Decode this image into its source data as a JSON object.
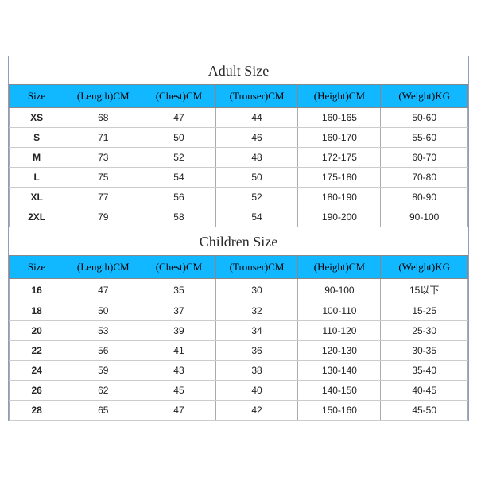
{
  "adult": {
    "title": "Adult Size",
    "columns": [
      "Size",
      "(Length)CM",
      "(Chest)CM",
      "(Trouser)CM",
      "(Height)CM",
      "(Weight)KG"
    ],
    "rows": [
      [
        "XS",
        "68",
        "47",
        "44",
        "160-165",
        "50-60"
      ],
      [
        "S",
        "71",
        "50",
        "46",
        "160-170",
        "55-60"
      ],
      [
        "M",
        "73",
        "52",
        "48",
        "172-175",
        "60-70"
      ],
      [
        "L",
        "75",
        "54",
        "50",
        "175-180",
        "70-80"
      ],
      [
        "XL",
        "77",
        "56",
        "52",
        "180-190",
        "80-90"
      ],
      [
        "2XL",
        "79",
        "58",
        "54",
        "190-200",
        "90-100"
      ]
    ]
  },
  "children": {
    "title": "Children Size",
    "columns": [
      "Size",
      "(Length)CM",
      "(Chest)CM",
      "(Trouser)CM",
      "(Height)CM",
      "(Weight)KG"
    ],
    "rows": [
      [
        "16",
        "47",
        "35",
        "30",
        "90-100",
        "15以下"
      ],
      [
        "18",
        "50",
        "37",
        "32",
        "100-110",
        "15-25"
      ],
      [
        "20",
        "53",
        "39",
        "34",
        "110-120",
        "25-30"
      ],
      [
        "22",
        "56",
        "41",
        "36",
        "120-130",
        "30-35"
      ],
      [
        "24",
        "59",
        "43",
        "38",
        "130-140",
        "35-40"
      ],
      [
        "26",
        "62",
        "45",
        "40",
        "140-150",
        "40-45"
      ],
      [
        "28",
        "65",
        "47",
        "42",
        "150-160",
        "45-50"
      ]
    ]
  },
  "style": {
    "header_bg": "#12b8ff",
    "header_text": "#000000",
    "border_color": "#8b9dc3",
    "cell_border": "#aaaaaa",
    "row_border": "#cccccc",
    "title_fontsize": 18,
    "header_fontsize": 13,
    "cell_fontsize": 12,
    "col_widths_pct": [
      12,
      17,
      16,
      18,
      18,
      19
    ]
  }
}
